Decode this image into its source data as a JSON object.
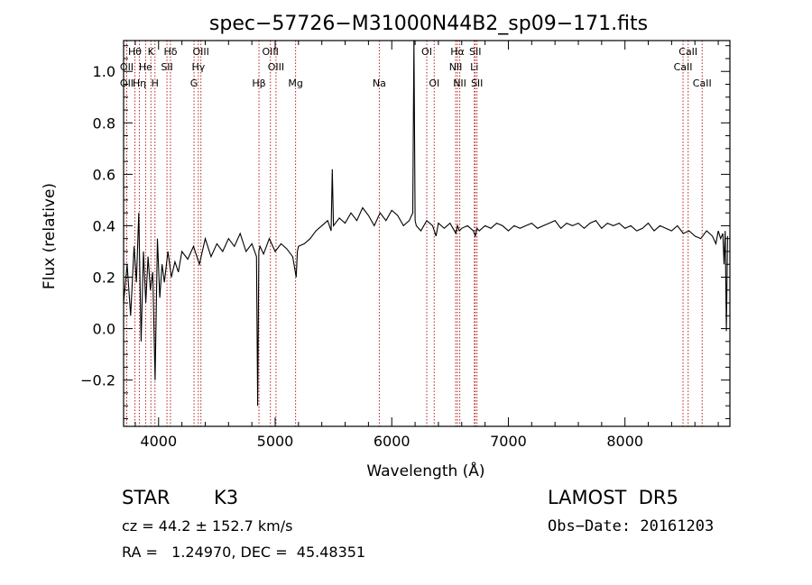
{
  "chart_data": {
    "type": "line",
    "title": "spec−57726−M31000N44B2_sp09−171.fits",
    "xlabel": "Wavelength (Å)",
    "ylabel": "Flux (relative)",
    "xlim": [
      3700,
      8900
    ],
    "ylim": [
      -0.38,
      1.12
    ],
    "x_ticks": [
      4000,
      5000,
      6000,
      7000,
      8000
    ],
    "x_tick_labels": [
      "4000",
      "5000",
      "6000",
      "7000",
      "8000"
    ],
    "y_ticks": [
      -0.2,
      0.0,
      0.2,
      0.4,
      0.6,
      0.8,
      1.0
    ],
    "y_tick_labels": [
      "−0.2",
      "0.0",
      "0.2",
      "0.4",
      "0.6",
      "0.8",
      "1.0"
    ],
    "grid": false,
    "series": [
      {
        "x": [
          3700,
          3730,
          3760,
          3790,
          3810,
          3830,
          3850,
          3870,
          3890,
          3910,
          3930,
          3950,
          3970,
          3990,
          4010,
          4030,
          4050,
          4080,
          4110,
          4140,
          4170,
          4200,
          4250,
          4300,
          4350,
          4400,
          4450,
          4500,
          4550,
          4600,
          4650,
          4700,
          4750,
          4800,
          4840,
          4850,
          4860,
          4870,
          4900,
          4950,
          5000,
          5050,
          5100,
          5150,
          5180,
          5190,
          5200,
          5250,
          5300,
          5350,
          5400,
          5450,
          5480,
          5490,
          5500,
          5550,
          5600,
          5650,
          5700,
          5750,
          5800,
          5850,
          5900,
          5950,
          6000,
          6050,
          6100,
          6150,
          6180,
          6190,
          6200,
          6210,
          6250,
          6300,
          6350,
          6380,
          6400,
          6450,
          6500,
          6550,
          6563,
          6580,
          6600,
          6650,
          6700,
          6716,
          6730,
          6750,
          6800,
          6850,
          6900,
          6950,
          7000,
          7050,
          7100,
          7150,
          7200,
          7250,
          7300,
          7350,
          7400,
          7450,
          7500,
          7550,
          7600,
          7650,
          7700,
          7750,
          7800,
          7850,
          7900,
          7950,
          8000,
          8050,
          8100,
          8150,
          8200,
          8250,
          8300,
          8350,
          8400,
          8450,
          8500,
          8550,
          8600,
          8650,
          8700,
          8750,
          8780,
          8800,
          8820,
          8840,
          8850,
          8860,
          8870,
          8880
        ],
        "y": [
          0.1,
          0.25,
          0.05,
          0.32,
          0.18,
          0.45,
          -0.05,
          0.3,
          0.1,
          0.28,
          0.15,
          0.22,
          -0.2,
          0.35,
          0.12,
          0.25,
          0.18,
          0.3,
          0.2,
          0.26,
          0.22,
          0.3,
          0.27,
          0.32,
          0.25,
          0.35,
          0.28,
          0.33,
          0.3,
          0.35,
          0.32,
          0.37,
          0.3,
          0.33,
          0.28,
          -0.3,
          0.3,
          0.32,
          0.29,
          0.35,
          0.3,
          0.33,
          0.31,
          0.28,
          0.2,
          0.3,
          0.32,
          0.33,
          0.35,
          0.38,
          0.4,
          0.42,
          0.38,
          0.62,
          0.4,
          0.43,
          0.41,
          0.45,
          0.42,
          0.47,
          0.44,
          0.4,
          0.45,
          0.42,
          0.46,
          0.44,
          0.4,
          0.42,
          0.45,
          1.12,
          0.42,
          0.4,
          0.38,
          0.42,
          0.4,
          0.36,
          0.41,
          0.39,
          0.41,
          0.37,
          0.4,
          0.38,
          0.39,
          0.4,
          0.38,
          0.36,
          0.39,
          0.38,
          0.4,
          0.39,
          0.41,
          0.4,
          0.38,
          0.4,
          0.39,
          0.4,
          0.41,
          0.39,
          0.4,
          0.41,
          0.42,
          0.39,
          0.41,
          0.4,
          0.41,
          0.39,
          0.41,
          0.42,
          0.39,
          0.41,
          0.4,
          0.41,
          0.39,
          0.4,
          0.38,
          0.39,
          0.41,
          0.38,
          0.4,
          0.39,
          0.38,
          0.4,
          0.37,
          0.38,
          0.36,
          0.35,
          0.38,
          0.36,
          0.33,
          0.38,
          0.35,
          0.37,
          0.25,
          0.38,
          -0.01,
          0.36
        ]
      }
    ],
    "lines": [
      {
        "label": "Hθ",
        "x": 3797,
        "row": 0
      },
      {
        "label": "K",
        "x": 3934,
        "row": 0
      },
      {
        "label": "Hδ",
        "x": 4102,
        "row": 0
      },
      {
        "label": "OIII",
        "x": 4363,
        "row": 0
      },
      {
        "label": "OIII",
        "x": 4959,
        "row": 0
      },
      {
        "label": "OI",
        "x": 6300,
        "row": 0
      },
      {
        "label": "Hα",
        "x": 6563,
        "row": 0
      },
      {
        "label": "SII",
        "x": 6716,
        "row": 0
      },
      {
        "label": "CaII",
        "x": 8542,
        "row": 0
      },
      {
        "label": "OII",
        "x": 3727,
        "row": 1
      },
      {
        "label": "He",
        "x": 3889,
        "row": 1
      },
      {
        "label": "SII",
        "x": 4072,
        "row": 1
      },
      {
        "label": "Hγ",
        "x": 4341,
        "row": 1
      },
      {
        "label": "OIII",
        "x": 5007,
        "row": 1
      },
      {
        "label": "NII",
        "x": 6548,
        "row": 1
      },
      {
        "label": "Li",
        "x": 6708,
        "row": 1
      },
      {
        "label": "CaII",
        "x": 8498,
        "row": 1
      },
      {
        "label": "OII",
        "x": 3727,
        "row": 2
      },
      {
        "label": "Hη",
        "x": 3835,
        "row": 2
      },
      {
        "label": "H",
        "x": 3969,
        "row": 2
      },
      {
        "label": "G",
        "x": 4304,
        "row": 2
      },
      {
        "label": "Hβ",
        "x": 4861,
        "row": 2
      },
      {
        "label": "Mg",
        "x": 5175,
        "row": 2
      },
      {
        "label": "Na",
        "x": 5893,
        "row": 2
      },
      {
        "label": "OI",
        "x": 6364,
        "row": 2
      },
      {
        "label": "NII",
        "x": 6583,
        "row": 2
      },
      {
        "label": "SII",
        "x": 6731,
        "row": 2
      },
      {
        "label": "CaII",
        "x": 8662,
        "row": 2
      }
    ]
  },
  "info": {
    "object_class": "STAR",
    "subclass": "K3",
    "survey": "LAMOST  DR5",
    "cz_text": "cz = 44.2 ± 152.7 km/s",
    "obs_date": "Obs−Date: 20161203",
    "radec": "RA =   1.24970, DEC =  45.48351"
  },
  "colors": {
    "spectrum": "#000000",
    "line_markers": "#b22222",
    "axes": "#000000",
    "background": "#ffffff"
  }
}
